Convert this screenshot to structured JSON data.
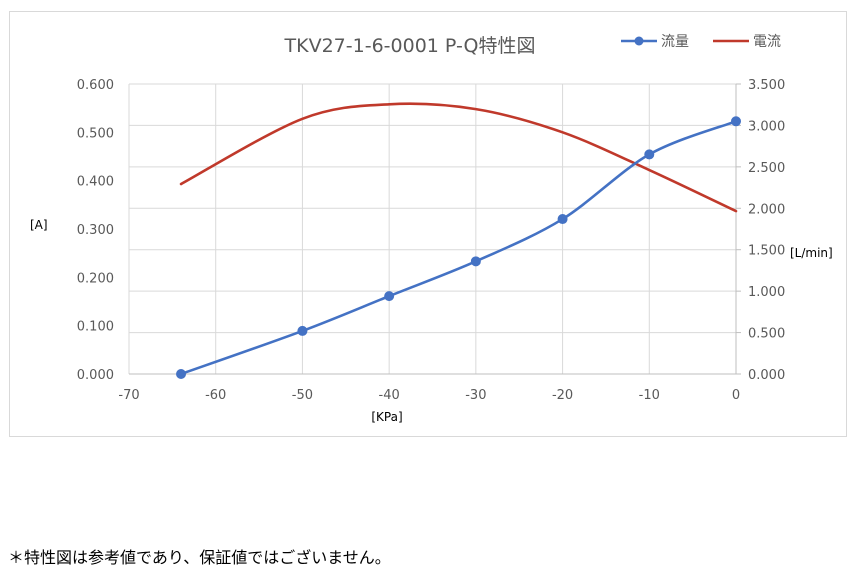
{
  "chart_data": {
    "type": "line",
    "title": "TKV27-1-6-0001 P-Q特性図",
    "xlabel": "[KPa]",
    "ylabel_left": "[A]",
    "ylabel_right": "[L/min]",
    "xlim": [
      -70,
      0
    ],
    "xticks": [
      "-70",
      "-60",
      "-50",
      "-40",
      "-30",
      "-20",
      "-10",
      "0"
    ],
    "ylim_left": [
      0,
      0.6
    ],
    "yticks_left": [
      "0.000",
      "0.100",
      "0.200",
      "0.300",
      "0.400",
      "0.500",
      "0.600"
    ],
    "ylim_right": [
      0,
      3.5
    ],
    "yticks_right": [
      "0.000",
      "0.500",
      "1.000",
      "1.500",
      "2.000",
      "2.500",
      "3.000",
      "3.500"
    ],
    "grid": true,
    "legend_position": "top-right",
    "series": [
      {
        "name": "流量",
        "axis": "right",
        "color": "#4472c4",
        "markers": true,
        "x": [
          -64,
          -50,
          -40,
          -30,
          -20,
          -10,
          0
        ],
        "y": [
          0.0,
          0.52,
          0.94,
          1.36,
          1.87,
          2.65,
          3.05
        ]
      },
      {
        "name": "電流",
        "axis": "left",
        "color": "#c0392b",
        "markers": false,
        "x": [
          -64,
          -50,
          -40,
          -30,
          -20,
          -10,
          0
        ],
        "y": [
          0.393,
          0.528,
          0.558,
          0.548,
          0.5,
          0.422,
          0.337
        ]
      }
    ]
  },
  "footnote": "＊特性図は参考値であり、保証値ではございません。"
}
